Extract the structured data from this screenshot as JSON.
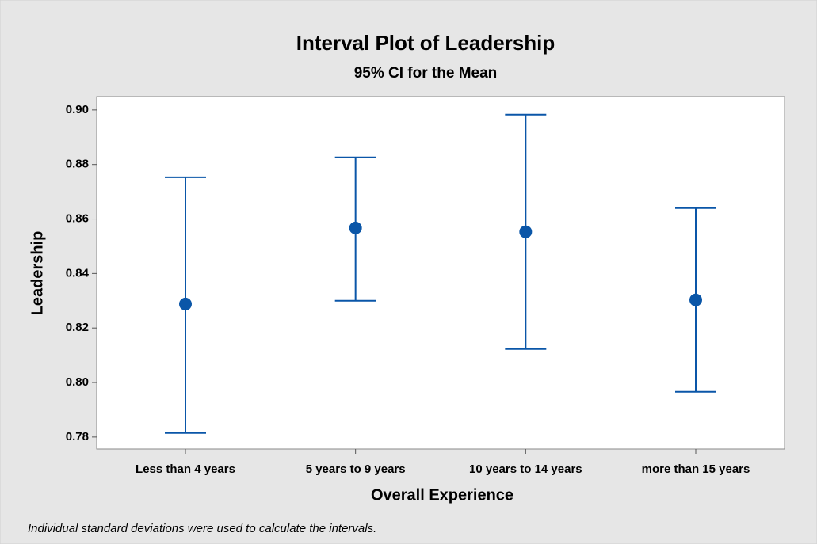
{
  "chart_data": {
    "type": "interval",
    "title": "Interval Plot of Leadership",
    "subtitle": "95% CI for the Mean",
    "x_label": "Overall Experience",
    "y_label": "Leadership",
    "footnote": "Individual standard deviations were used to calculate the intervals.",
    "categories": [
      "Less than 4 years",
      "5 years to 9 years",
      "10 years to 14 years",
      "more than 15 years"
    ],
    "values": [
      0.8288,
      0.8567,
      0.8553,
      0.8303
    ],
    "ci_lower": [
      0.7815,
      0.83,
      0.8123,
      0.7966
    ],
    "ci_upper": [
      0.8753,
      0.8826,
      0.8983,
      0.864
    ],
    "color": "#0a56a8",
    "ylim": [
      0.7756,
      0.9049
    ],
    "yticks": [
      0.78,
      {
        "value": 0.8,
        "label": "0.80"
      },
      0.82,
      0.84,
      0.86,
      0.88,
      {
        "value": 0.9,
        "label": "0.90"
      }
    ],
    "grid": false
  }
}
